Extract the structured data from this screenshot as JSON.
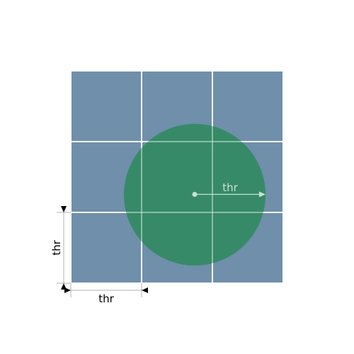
{
  "labels": {
    "radius": "thr",
    "width": "thr",
    "height": "thr"
  },
  "grid": {
    "rows": 3,
    "cols": 3
  },
  "colors": {
    "cell": "#6f8fab",
    "grid_line": "#ffffff",
    "circle": "#2e8a5c",
    "radius_arrow": "#c8e2d2",
    "radius_label": "#c8e2d2",
    "dimension_line": "#b0b0b0",
    "arrowhead": "#000000",
    "dimension_text": "#000000"
  }
}
